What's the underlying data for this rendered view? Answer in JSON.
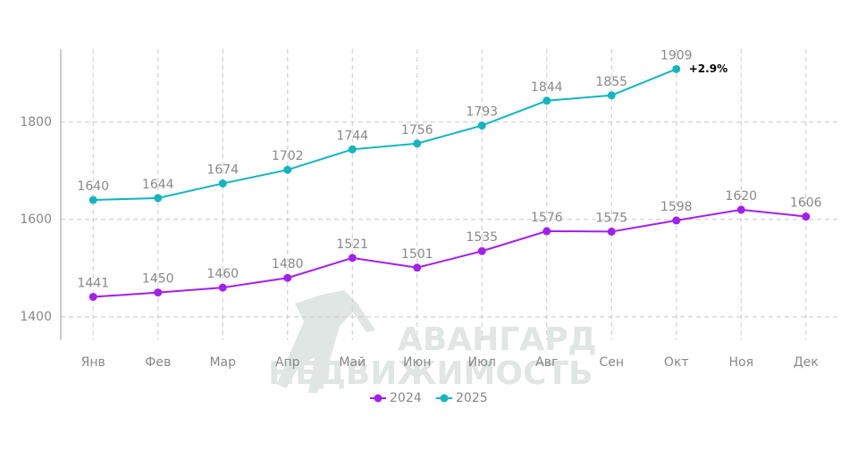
{
  "chart_data": {
    "type": "line",
    "categories": [
      "Янв",
      "Фев",
      "Мар",
      "Апр",
      "Май",
      "Июн",
      "Июл",
      "Авг",
      "Сен",
      "Окт",
      "Ноя",
      "Дек"
    ],
    "series": [
      {
        "name": "2024",
        "color": "#a31ff0",
        "values": [
          1441,
          1450,
          1460,
          1480,
          1521,
          1501,
          1535,
          1576,
          1575,
          1598,
          1620,
          1606
        ]
      },
      {
        "name": "2025",
        "color": "#12b5c0",
        "values": [
          1640,
          1644,
          1674,
          1702,
          1744,
          1756,
          1793,
          1844,
          1855,
          1909,
          null,
          null
        ]
      }
    ],
    "ylim": [
      1352,
      1950
    ],
    "yticks": [
      1400,
      1600,
      1800
    ],
    "grid": true,
    "annotation": "+2.9%",
    "watermark": [
      "АВАНГАРД",
      "НЕДВИЖИМОСТЬ"
    ],
    "legend": "bottom"
  }
}
